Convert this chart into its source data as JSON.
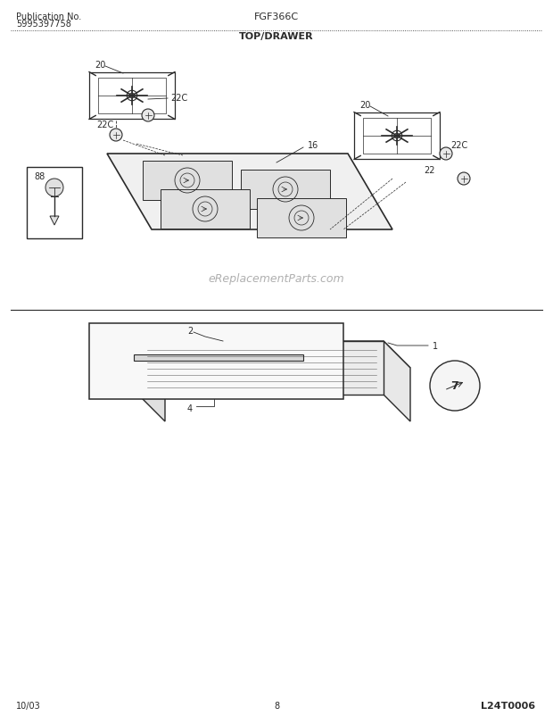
{
  "title_center": "FGF366C",
  "title_left1": "Publication No.",
  "title_left2": "5995397758",
  "section_title": "TOP/DRAWER",
  "bottom_left": "10/03",
  "bottom_center": "8",
  "bottom_right": "L24T0006",
  "bg_color": "#ffffff",
  "line_color": "#2a2a2a",
  "text_color": "#2a2a2a",
  "watermark": "eReplacementParts.com",
  "labels": {
    "20_left": "20",
    "22c_left1": "22C",
    "22c_left2": "22C",
    "16": "16",
    "20_right": "20",
    "22": "22",
    "22c_right": "22C",
    "88": "88",
    "1": "1",
    "2": "2",
    "4": "4",
    "7": "7"
  }
}
